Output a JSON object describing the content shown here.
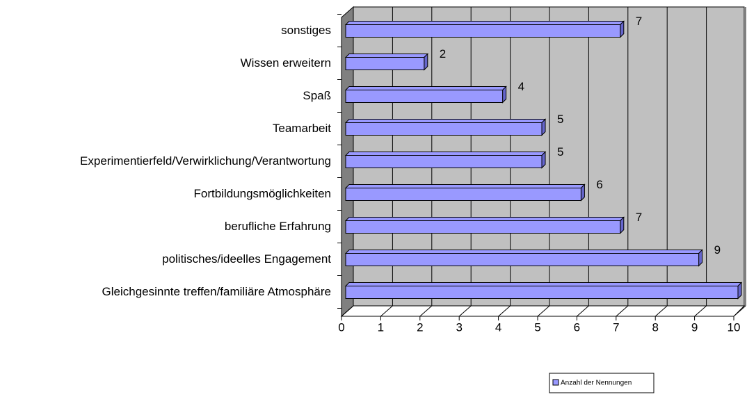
{
  "chart_data": {
    "type": "bar3d",
    "orientation": "horizontal",
    "categories": [
      "sonstiges",
      "Wissen erweitern",
      "Spaß",
      "Teamarbeit",
      "Experimentierfeld/Verwirklichung/Verantwortung",
      "Fortbildungsmöglichkeiten",
      "berufliche Erfahrung",
      "politisches/ideelles Engagement",
      "Gleichgesinnte treffen/familiäre Atmosphäre"
    ],
    "series": [
      {
        "name": "Anzahl der Nennungen",
        "color": "#9999ff",
        "values": [
          7,
          2,
          4,
          5,
          5,
          6,
          7,
          9,
          10
        ]
      }
    ],
    "xlim": [
      0,
      10
    ],
    "xticks": [
      0,
      1,
      2,
      3,
      4,
      5,
      6,
      7,
      8,
      9,
      10
    ],
    "grid": true,
    "legend": "bottom-right"
  }
}
